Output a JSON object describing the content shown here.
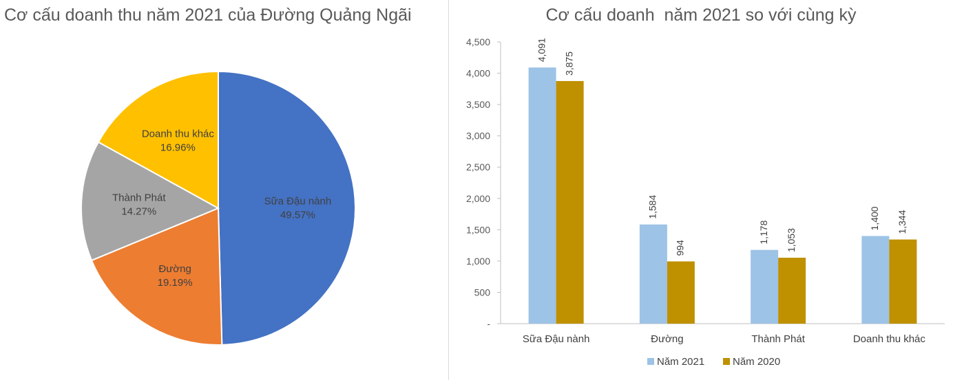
{
  "chart_data": [
    {
      "type": "pie",
      "title": "Cơ cấu doanh thu năm 2021 của Đường Quảng Ngãi",
      "slices": [
        {
          "label": "Sữa Đậu nành",
          "value": 49.57,
          "display": "49.57%",
          "color": "#4472C4"
        },
        {
          "label": "Đường",
          "value": 19.19,
          "display": "19.19%",
          "color": "#ED7D31"
        },
        {
          "label": "Thành Phát",
          "value": 14.27,
          "display": "14.27%",
          "color": "#A5A5A5"
        },
        {
          "label": "Doanh thu khác",
          "value": 16.96,
          "display": "16.96%",
          "color": "#FFC000"
        }
      ]
    },
    {
      "type": "bar",
      "title": "Cơ cấu doanh  năm 2021 so với cùng kỳ",
      "categories": [
        "Sữa Đậu nành",
        "Đường",
        "Thành Phát",
        "Doanh thu khác"
      ],
      "series": [
        {
          "name": "Năm 2021",
          "values": [
            4091,
            1584,
            1178,
            1400
          ],
          "color": "#9DC3E6"
        },
        {
          "name": "Năm 2020",
          "values": [
            3875,
            994,
            1053,
            1344
          ],
          "color": "#BF9000"
        }
      ],
      "ylim": [
        0,
        4500
      ],
      "yticks": [
        0,
        500,
        1000,
        1500,
        2000,
        2500,
        3000,
        3500,
        4000,
        4500
      ],
      "ytick_labels": [
        "-",
        "500",
        "1,000",
        "1,500",
        "2,000",
        "2,500",
        "3,000",
        "3,500",
        "4,000",
        "4,500"
      ],
      "grid": false,
      "legend": "bottom"
    }
  ]
}
